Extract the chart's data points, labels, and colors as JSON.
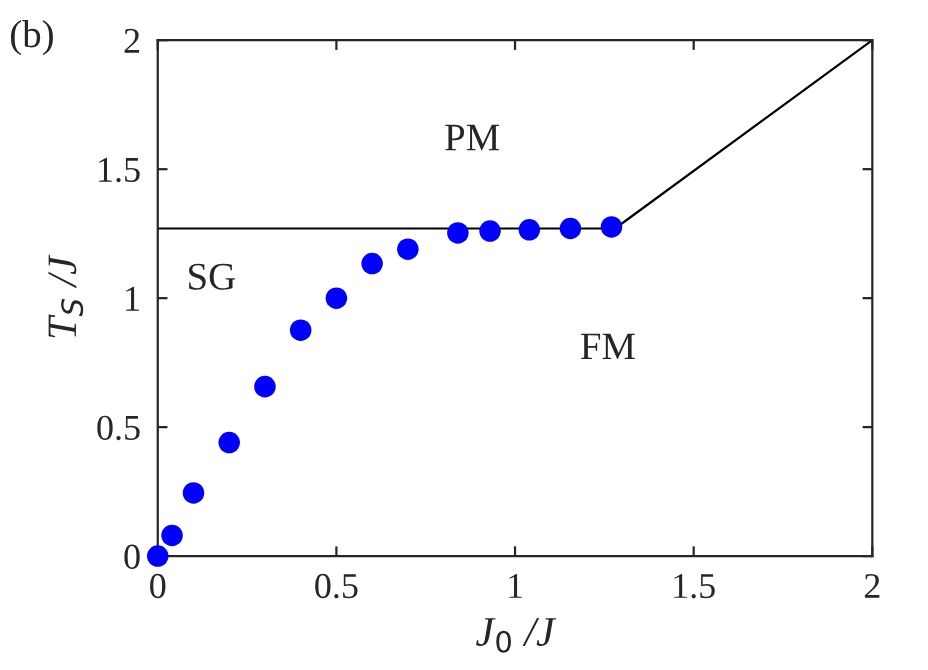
{
  "chart_data": {
    "type": "scatter",
    "title": "(b)",
    "xlabel": "J$_{0}$ /J",
    "ylabel": "T$_{S}$ /J",
    "xlim": [
      0,
      2
    ],
    "ylim": [
      0,
      2
    ],
    "xticks": [
      0,
      0.5,
      1,
      1.5,
      2
    ],
    "yticks": [
      0,
      0.5,
      1,
      1.5,
      2
    ],
    "grid": false,
    "legend": false,
    "series": [
      {
        "marker": "circle",
        "color": "#0000ff",
        "x": [
          0,
          0.04,
          0.1,
          0.2,
          0.3,
          0.4,
          0.5,
          0.6,
          0.7,
          0.84,
          0.93,
          1.04,
          1.155,
          1.27
        ],
        "values": [
          0,
          0.08,
          0.245,
          0.44,
          0.657,
          0.876,
          1.0,
          1.134,
          1.19,
          1.253,
          1.26,
          1.265,
          1.27,
          1.276
        ]
      },
      {
        "type": "line",
        "marker": "none",
        "color": "#000000",
        "x": [
          0,
          1.28,
          2
        ],
        "values": [
          1.27,
          1.27,
          2
        ]
      }
    ],
    "annotations": [
      "SG",
      "PM",
      "FM"
    ]
  }
}
